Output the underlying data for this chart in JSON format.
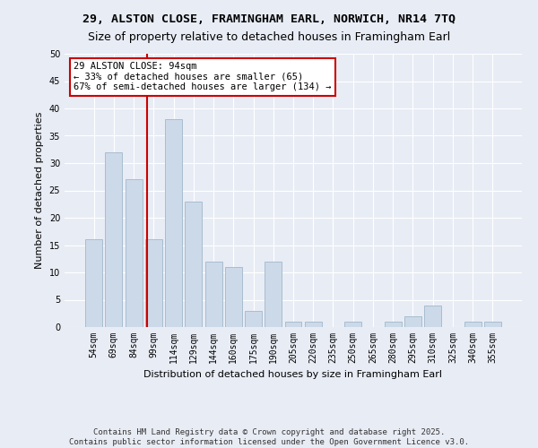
{
  "title1": "29, ALSTON CLOSE, FRAMINGHAM EARL, NORWICH, NR14 7TQ",
  "title2": "Size of property relative to detached houses in Framingham Earl",
  "xlabel": "Distribution of detached houses by size in Framingham Earl",
  "ylabel": "Number of detached properties",
  "categories": [
    "54sqm",
    "69sqm",
    "84sqm",
    "99sqm",
    "114sqm",
    "129sqm",
    "144sqm",
    "160sqm",
    "175sqm",
    "190sqm",
    "205sqm",
    "220sqm",
    "235sqm",
    "250sqm",
    "265sqm",
    "280sqm",
    "295sqm",
    "310sqm",
    "325sqm",
    "340sqm",
    "355sqm"
  ],
  "values": [
    16,
    32,
    27,
    16,
    38,
    23,
    12,
    11,
    3,
    12,
    1,
    1,
    0,
    1,
    0,
    1,
    2,
    4,
    0,
    1,
    1
  ],
  "bar_color": "#ccd9e8",
  "bar_edge_color": "#a8bdd0",
  "property_sqm": 94,
  "property_label": "29 ALSTON CLOSE: 94sqm",
  "annotation_line1": "← 33% of detached houses are smaller (65)",
  "annotation_line2": "67% of semi-detached houses are larger (134) →",
  "vline_color": "#cc0000",
  "annotation_box_edge": "#cc0000",
  "ylim": [
    0,
    50
  ],
  "yticks": [
    0,
    5,
    10,
    15,
    20,
    25,
    30,
    35,
    40,
    45,
    50
  ],
  "background_color": "#e8ecf5",
  "plot_bg_color": "#e8ecf5",
  "footer": "Contains HM Land Registry data © Crown copyright and database right 2025.\nContains public sector information licensed under the Open Government Licence v3.0.",
  "title1_fontsize": 9.5,
  "title2_fontsize": 9,
  "axis_label_fontsize": 8,
  "tick_fontsize": 7,
  "footer_fontsize": 6.5,
  "annot_fontsize": 7.5
}
